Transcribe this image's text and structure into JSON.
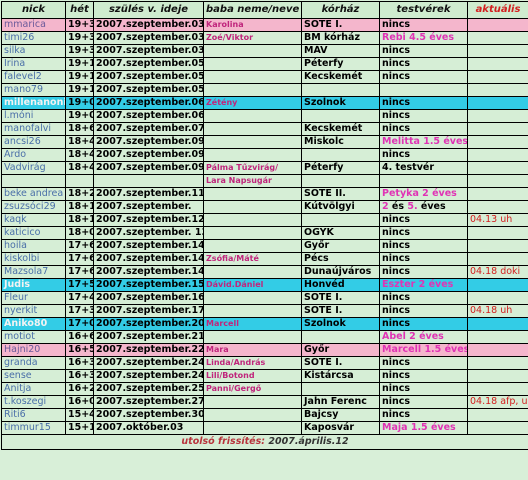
{
  "headers": [
    "nick",
    "hét",
    "szülés v. ideje",
    "baba neme/neve",
    "kórház",
    "testvérek",
    "aktuális"
  ],
  "rows": [
    {
      "nick": "mmarica",
      "het": "19+3",
      "date": "2007.szeptember.03",
      "baba": "Karolina",
      "korhaz": "SOTE I.",
      "tv": "nincs",
      "akt": "",
      "hl": "pink"
    },
    {
      "nick": "timi26",
      "het": "19+3",
      "date": "2007.szeptember.03",
      "baba": "Zoé/Viktor",
      "korhaz": "BM kórház",
      "tv": "Rebi 4.5 éves",
      "tvPink": true,
      "akt": ""
    },
    {
      "nick": "silka",
      "het": "19+3",
      "date": "2007.szeptember.03",
      "baba": "",
      "korhaz": "MÁV",
      "tv": "nincs",
      "akt": ""
    },
    {
      "nick": "Irina",
      "het": "19+1",
      "date": "2007.szeptember.05",
      "baba": "",
      "korhaz": "Péterfy",
      "tv": "nincs",
      "akt": ""
    },
    {
      "nick": "falevel2",
      "het": "19+1",
      "date": "2007.szeptember.05",
      "baba": "",
      "korhaz": "Kecskemét",
      "tv": "nincs",
      "akt": ""
    },
    {
      "nick": "mano79",
      "het": "19+1",
      "date": "2007.szeptember.05",
      "baba": "",
      "korhaz": "",
      "tv": "",
      "akt": ""
    },
    {
      "nick": "millenanoni",
      "het": "19+0",
      "date": "2007.szeptember.06",
      "baba": "Zétény",
      "korhaz": "Szolnok",
      "tv": "nincs",
      "akt": "",
      "hl": "blue"
    },
    {
      "nick": "l.móni",
      "het": "19+0",
      "date": "2007.szeptember.06",
      "baba": "",
      "korhaz": "",
      "tv": "nincs",
      "akt": ""
    },
    {
      "nick": "manofalvi",
      "het": "18+6",
      "date": "2007.szeptember.07",
      "baba": "",
      "korhaz": "Kecskemét",
      "tv": "nincs",
      "akt": ""
    },
    {
      "nick": "ancsi26",
      "het": "18+4",
      "date": "2007.szeptember.09",
      "baba": "",
      "korhaz": "Miskolc",
      "tv": "Melitta 1.5 éves",
      "tvPink": true,
      "akt": ""
    },
    {
      "nick": "Ardo",
      "het": "18+4",
      "date": "2007.szeptember.09",
      "baba": "",
      "korhaz": "",
      "tv": "nincs",
      "akt": ""
    },
    {
      "nick": "Vadvirág",
      "het": "18+4",
      "date": "2007.szeptember.09.",
      "baba": "Pálma Tűzvirág/",
      "korhaz": "Péterfy",
      "tv": "4. testvér",
      "akt": ""
    },
    {
      "nick": "",
      "het": "",
      "date": "",
      "baba": "Lara Napsugár",
      "korhaz": "",
      "tv": "",
      "akt": ""
    },
    {
      "nick": "beke andrea",
      "het": "18+2",
      "date": "2007.szeptember.11",
      "baba": "",
      "korhaz": "SOTE II.",
      "tv": "Petyka 2 éves",
      "tvPink": true,
      "akt": ""
    },
    {
      "nick": "zsuzsóci29",
      "het": "18+1",
      "date": "2007.szeptember.",
      "baba": "",
      "korhaz": "Kútvölgyi",
      "tv": "2 és 5. éves",
      "tvMixed": true,
      "akt": ""
    },
    {
      "nick": "kaqk",
      "het": "18+1",
      "date": "2007.szeptember.12",
      "baba": "",
      "korhaz": "",
      "tv": "nincs",
      "akt": "04.13 uh"
    },
    {
      "nick": "katicico",
      "het": "18+0",
      "date": "2007.szeptember. 13",
      "baba": "",
      "korhaz": "ÖGYK",
      "tv": "nincs",
      "akt": ""
    },
    {
      "nick": "hoila",
      "het": "17+6",
      "date": "2007.szeptember.14",
      "baba": "",
      "korhaz": "Győr",
      "tv": "nincs",
      "akt": ""
    },
    {
      "nick": "kiskolbi",
      "het": "17+6",
      "date": "2007.szeptember.14",
      "baba": "Zsófia/Máté",
      "korhaz": "Pécs",
      "tv": "nincs",
      "akt": ""
    },
    {
      "nick": "Mazsola7",
      "het": "17+6",
      "date": "2007.szeptember.14",
      "baba": "",
      "korhaz": "Dunaújváros",
      "tv": "nincs",
      "akt": "04.18 doki"
    },
    {
      "nick": "Judis",
      "het": "17+5",
      "date": "2007.szeptember.15",
      "baba": "Dávid.Dániel",
      "korhaz": "Honvéd",
      "tv": "Eszter 2 éves",
      "tvPink": true,
      "akt": "",
      "hl": "blue"
    },
    {
      "nick": "Fleur",
      "het": "17+4",
      "date": "2007.szeptember.16",
      "baba": "",
      "korhaz": "SOTE I.",
      "tv": "nincs",
      "akt": ""
    },
    {
      "nick": "nyerkit",
      "het": "17+3",
      "date": "2007.szeptember.17",
      "baba": "",
      "korhaz": "SOTE I.",
      "tv": "nincs",
      "akt": "04.18 uh"
    },
    {
      "nick": "Aniko80",
      "het": "17+0",
      "date": "2007.szeptember.20",
      "baba": "Marcell",
      "korhaz": "Szolnok",
      "tv": "nincs",
      "akt": "",
      "hl": "blue"
    },
    {
      "nick": "motiot",
      "het": "16+6",
      "date": "2007.szeptember.21",
      "baba": "",
      "korhaz": "",
      "tv": "Ábel 2 éves",
      "tvPink": true,
      "akt": ""
    },
    {
      "nick": "Hajni20",
      "het": "16+5",
      "date": "2007.szeptember.22",
      "baba": "Mara",
      "korhaz": "Győr",
      "tv": "Marcell 1.5 éves",
      "tvPink": true,
      "akt": "",
      "hl": "pink"
    },
    {
      "nick": "granda",
      "het": "16+3",
      "date": "2007.szeptember.24",
      "baba": "Linda/András",
      "korhaz": "SOTE I.",
      "tv": "nincs",
      "akt": ""
    },
    {
      "nick": "sense",
      "het": "16+3",
      "date": "2007.szeptember.24",
      "baba": "Lili/Botond",
      "korhaz": "Kistárcsa",
      "tv": "nincs",
      "akt": ""
    },
    {
      "nick": "Anitja",
      "het": "16+2",
      "date": "2007.szeptember.25",
      "baba": "Panni/Gergő",
      "korhaz": "",
      "tv": "nincs",
      "akt": ""
    },
    {
      "nick": "t.koszegi",
      "het": "16+0",
      "date": "2007.szeptember.27",
      "baba": "",
      "korhaz": "Jahn Ferenc",
      "tv": "nincs",
      "akt": "04.18 afp, uh,"
    },
    {
      "nick": "Riti6",
      "het": "15+4",
      "date": "2007.szeptember.30",
      "baba": "",
      "korhaz": "Bajcsy",
      "tv": "nincs",
      "akt": ""
    },
    {
      "nick": "timmur15",
      "het": "15+1",
      "date": "2007.október.03",
      "baba": "",
      "korhaz": "Kaposvár",
      "tv": "Maja 1.5 éves",
      "tvPink": true,
      "akt": ""
    }
  ],
  "footer": {
    "label": "utolsó frissítés:",
    "date": "2007.április.12"
  }
}
